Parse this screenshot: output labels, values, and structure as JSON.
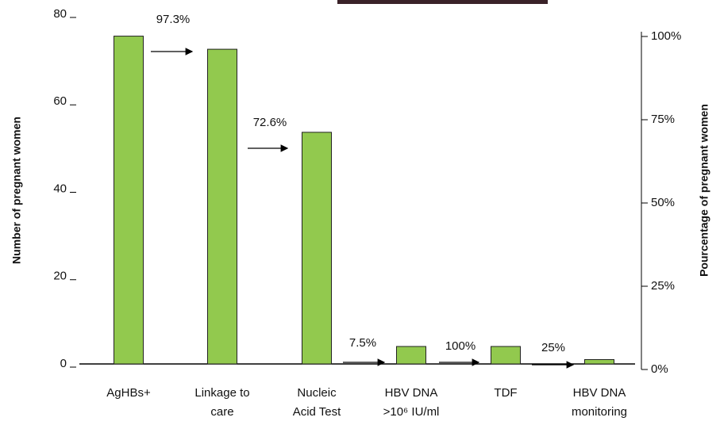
{
  "chart_data": {
    "type": "bar",
    "categories": [
      "AgHBs+",
      "Linkage to care",
      "Nucleic Acid Test",
      "HBV DNA >10⁶ IU/ml",
      "TDF",
      "HBV DNA monitoring"
    ],
    "values": [
      75,
      72,
      53,
      4,
      4,
      1
    ],
    "color": "#92c94e",
    "ylim": [
      0,
      80
    ],
    "yticks": [
      0,
      20,
      40,
      60,
      80
    ],
    "y2lim": [
      0,
      100
    ],
    "y2ticks": [
      {
        "value": 0,
        "label": "0%"
      },
      {
        "value": 25,
        "label": "25%"
      },
      {
        "value": 50,
        "label": "50%"
      },
      {
        "value": 75,
        "label": "75%"
      },
      {
        "value": 100,
        "label": "100%"
      }
    ],
    "ylabel": "Number of pregnant women",
    "y2label": "Pourcentage of pregnant women",
    "annotations": [
      "97.3%",
      "72.6%",
      "7.5%",
      "100%",
      "25%"
    ]
  }
}
